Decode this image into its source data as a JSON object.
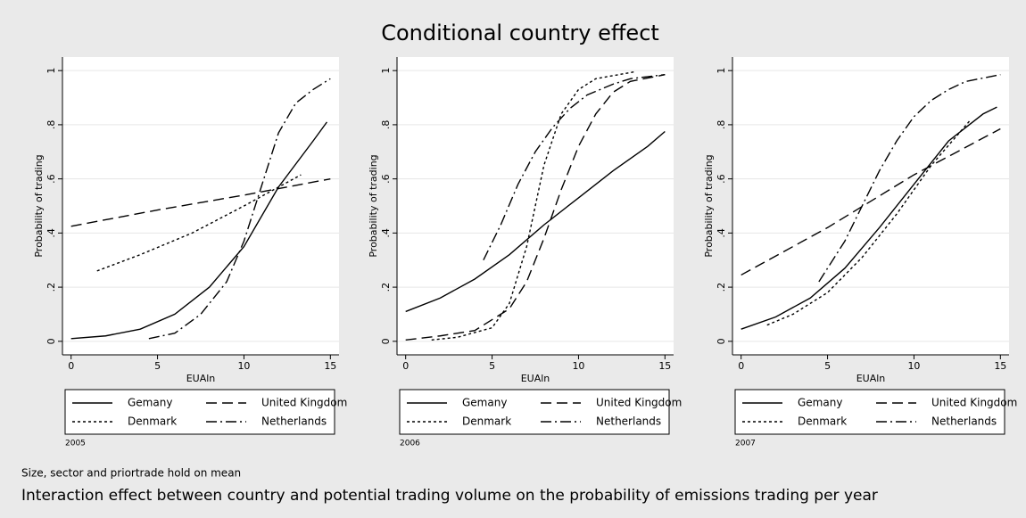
{
  "title": "Conditional country effect",
  "note": "Size, sector and priortrade hold on mean",
  "caption": "Interaction effect between country and potential trading volume on the probability of emissions trading per year",
  "chart_data": [
    {
      "type": "line",
      "subtitle": "2005",
      "xlabel": "EUAln",
      "ylabel": "Probability of trading",
      "xlim": [
        -0.5,
        15.5
      ],
      "xticks": [
        0,
        5,
        10,
        15
      ],
      "ylim": [
        -0.05,
        1.05
      ],
      "yticks": [
        0,
        {
          "value": 0.2,
          "label": ".2"
        },
        {
          "value": 0.4,
          "label": ".4"
        },
        {
          "value": 0.6,
          "label": ".6"
        },
        {
          "value": 0.8,
          "label": ".8"
        },
        1
      ],
      "grid": true,
      "series": [
        {
          "name": "Gemany",
          "color": "#000000",
          "dash": "none",
          "x": [
            0,
            2,
            4,
            6,
            8,
            10,
            12,
            14,
            14.8
          ],
          "values": [
            0.01,
            0.02,
            0.045,
            0.1,
            0.2,
            0.35,
            0.57,
            0.74,
            0.81
          ]
        },
        {
          "name": "United Kingdom",
          "color": "#000000",
          "dash": "12,6",
          "x": [
            0,
            5,
            10,
            15
          ],
          "values": [
            0.425,
            0.485,
            0.54,
            0.6
          ]
        },
        {
          "name": "Denmark",
          "color": "#000000",
          "dash": "3,3",
          "x": [
            1.5,
            4,
            7,
            10,
            13.3
          ],
          "values": [
            0.26,
            0.32,
            0.4,
            0.5,
            0.615
          ]
        },
        {
          "name": "Netherlands",
          "color": "#000000",
          "dash": "12,4,2,4",
          "x": [
            4.5,
            6,
            7.5,
            9,
            10,
            11,
            12,
            13,
            14,
            15
          ],
          "values": [
            0.01,
            0.03,
            0.1,
            0.22,
            0.37,
            0.57,
            0.77,
            0.88,
            0.93,
            0.97
          ]
        }
      ]
    },
    {
      "type": "line",
      "subtitle": "2006",
      "xlabel": "EUAln",
      "ylabel": "Probability of trading",
      "xlim": [
        -0.5,
        15.5
      ],
      "xticks": [
        0,
        5,
        10,
        15
      ],
      "ylim": [
        -0.05,
        1.05
      ],
      "yticks": [
        0,
        {
          "value": 0.2,
          "label": ".2"
        },
        {
          "value": 0.4,
          "label": ".4"
        },
        {
          "value": 0.6,
          "label": ".6"
        },
        {
          "value": 0.8,
          "label": ".8"
        },
        1
      ],
      "grid": true,
      "series": [
        {
          "name": "Gemany",
          "color": "#000000",
          "dash": "none",
          "x": [
            0,
            2,
            4,
            6,
            8,
            10,
            12,
            14,
            15
          ],
          "values": [
            0.11,
            0.16,
            0.23,
            0.32,
            0.43,
            0.53,
            0.63,
            0.72,
            0.775
          ]
        },
        {
          "name": "United Kingdom",
          "color": "#000000",
          "dash": "12,6",
          "x": [
            0,
            2,
            4,
            6,
            7,
            8,
            9,
            10,
            11,
            12,
            13,
            15
          ],
          "values": [
            0.005,
            0.02,
            0.04,
            0.12,
            0.22,
            0.38,
            0.56,
            0.72,
            0.84,
            0.92,
            0.96,
            0.985
          ]
        },
        {
          "name": "Denmark",
          "color": "#000000",
          "dash": "3,3",
          "x": [
            1.5,
            3,
            5,
            6,
            7,
            8,
            9,
            10,
            11,
            13.2
          ],
          "values": [
            0.005,
            0.015,
            0.05,
            0.14,
            0.35,
            0.65,
            0.84,
            0.93,
            0.97,
            0.995
          ]
        },
        {
          "name": "Netherlands",
          "color": "#000000",
          "dash": "12,4,2,4",
          "x": [
            4.5,
            5.5,
            6.5,
            7.5,
            8.5,
            9.5,
            10.5,
            12,
            13,
            15
          ],
          "values": [
            0.3,
            0.43,
            0.58,
            0.7,
            0.79,
            0.86,
            0.91,
            0.95,
            0.97,
            0.985
          ]
        }
      ]
    },
    {
      "type": "line",
      "subtitle": "2007",
      "xlabel": "EUAln",
      "ylabel": "Probability of trading",
      "xlim": [
        -0.5,
        15.5
      ],
      "xticks": [
        0,
        5,
        10,
        15
      ],
      "ylim": [
        -0.05,
        1.05
      ],
      "yticks": [
        0,
        {
          "value": 0.2,
          "label": ".2"
        },
        {
          "value": 0.4,
          "label": ".4"
        },
        {
          "value": 0.6,
          "label": ".6"
        },
        {
          "value": 0.8,
          "label": ".8"
        },
        1
      ],
      "grid": true,
      "series": [
        {
          "name": "Gemany",
          "color": "#000000",
          "dash": "none",
          "x": [
            0,
            2,
            4,
            6,
            8,
            10,
            12,
            14,
            14.8
          ],
          "values": [
            0.045,
            0.09,
            0.16,
            0.27,
            0.42,
            0.58,
            0.74,
            0.84,
            0.865
          ]
        },
        {
          "name": "United Kingdom",
          "color": "#000000",
          "dash": "12,6",
          "x": [
            0,
            5,
            10,
            15
          ],
          "values": [
            0.245,
            0.42,
            0.615,
            0.785
          ]
        },
        {
          "name": "Denmark",
          "color": "#000000",
          "dash": "3,3",
          "x": [
            1.5,
            3,
            5,
            7,
            9,
            11,
            13.3
          ],
          "values": [
            0.06,
            0.1,
            0.18,
            0.31,
            0.47,
            0.65,
            0.82
          ]
        },
        {
          "name": "Netherlands",
          "color": "#000000",
          "dash": "12,4,2,4",
          "x": [
            4.5,
            6,
            7,
            8,
            9,
            10,
            11,
            12,
            13,
            15
          ],
          "values": [
            0.22,
            0.37,
            0.5,
            0.63,
            0.74,
            0.83,
            0.89,
            0.93,
            0.96,
            0.985
          ]
        }
      ]
    }
  ]
}
